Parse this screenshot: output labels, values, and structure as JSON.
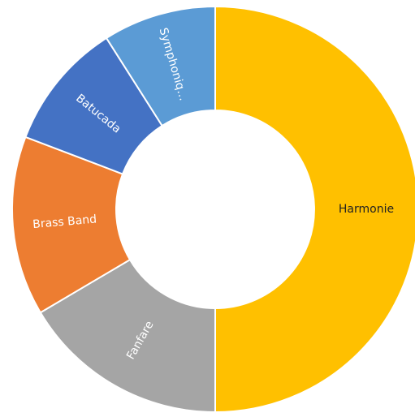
{
  "chart_data": {
    "type": "donut",
    "categories": [
      "Harmonie",
      "Fanfare",
      "Brass Band",
      "Batucada",
      "Symphoniq…"
    ],
    "values": [
      50,
      16.5,
      14.3,
      10.2,
      9
    ],
    "colors": [
      "#ffc000",
      "#a5a5a5",
      "#ed7d31",
      "#4472c4",
      "#5b9bd5"
    ],
    "label_colors": [
      "#222222",
      "#ffffff",
      "#ffffff",
      "#ffffff",
      "#ffffff"
    ]
  }
}
